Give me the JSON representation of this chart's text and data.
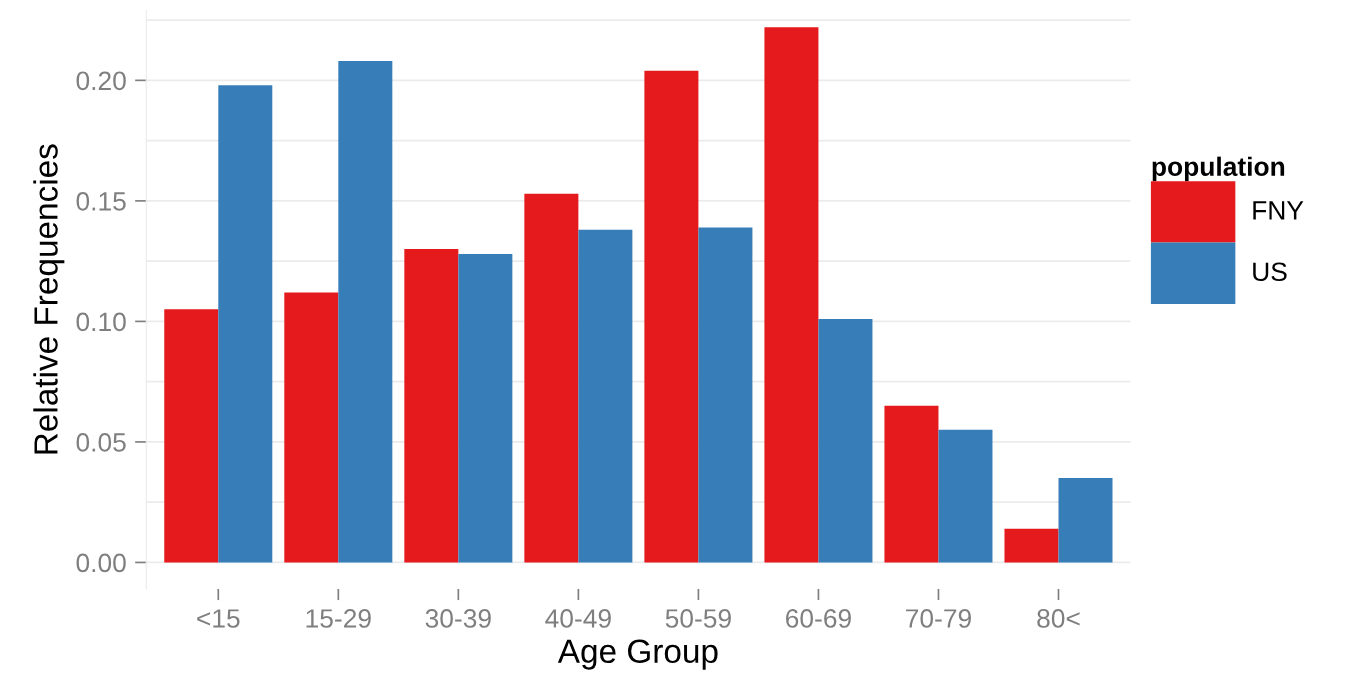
{
  "chart_data": {
    "type": "bar",
    "xlabel": "Age Group",
    "ylabel": "Relative Frequencies",
    "legend_title": "population",
    "categories": [
      "<15",
      "15-29",
      "30-39",
      "40-49",
      "50-59",
      "60-69",
      "70-79",
      "80<"
    ],
    "series": [
      {
        "name": "FNY",
        "color": "#e41a1c",
        "values": [
          0.105,
          0.112,
          0.13,
          0.153,
          0.204,
          0.222,
          0.065,
          0.014
        ]
      },
      {
        "name": "US",
        "color": "#377eb8",
        "values": [
          0.198,
          0.208,
          0.128,
          0.138,
          0.139,
          0.101,
          0.055,
          0.035
        ]
      }
    ],
    "ylim": [
      -0.011,
      0.229
    ],
    "yticks": [
      {
        "value": 0,
        "label": "0.00"
      },
      {
        "value": 0.025,
        "label": null
      },
      {
        "value": 0.05,
        "label": "0.05"
      },
      {
        "value": 0.075,
        "label": null
      },
      {
        "value": 0.1,
        "label": "0.10"
      },
      {
        "value": 0.125,
        "label": null
      },
      {
        "value": 0.15,
        "label": "0.15"
      },
      {
        "value": 0.175,
        "label": null
      },
      {
        "value": 0.2,
        "label": "0.20"
      },
      {
        "value": 0.225,
        "label": null
      }
    ],
    "grid": "y",
    "legend": "right"
  }
}
